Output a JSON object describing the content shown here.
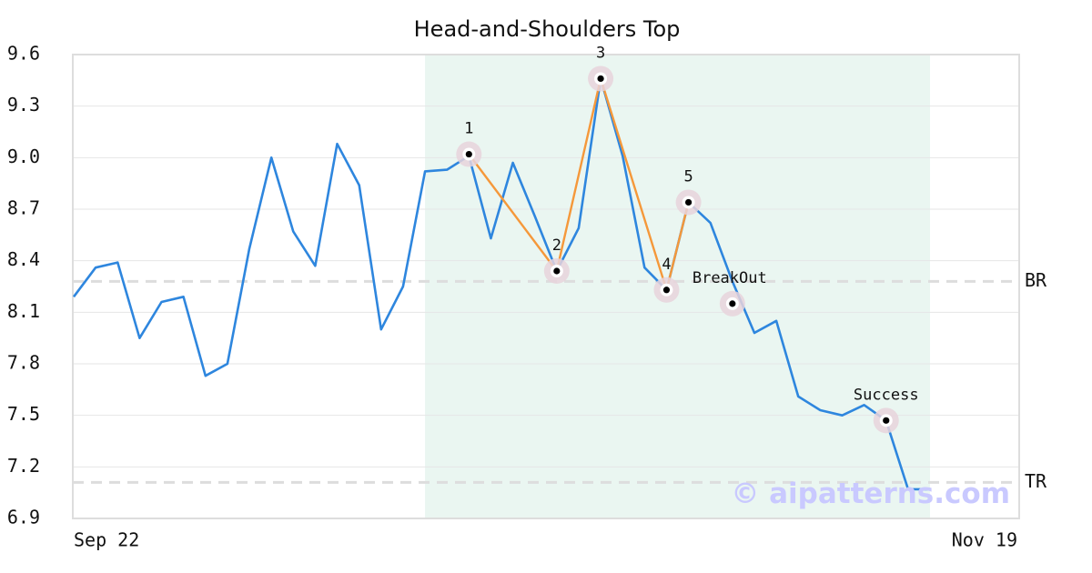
{
  "chart_data": {
    "type": "line",
    "title": "Head-and-Shoulders Top",
    "xlabel": "",
    "ylabel": "",
    "x_tick_labels": [
      "Sep 22",
      "Nov 19"
    ],
    "ylim": [
      6.9,
      9.6
    ],
    "yticks": [
      "6.9",
      "7.2",
      "7.5",
      "7.8",
      "8.1",
      "8.4",
      "8.7",
      "9.0",
      "9.3",
      "9.6"
    ],
    "grid": "horizontal",
    "colors": {
      "price": "#2e86de",
      "pattern": "#f5983a",
      "highlight": "#eaf6f1",
      "marker_halo": "#e8d3dc",
      "reference": "#dddddd"
    },
    "series": [
      {
        "values": [
          8.19,
          8.36,
          8.39,
          7.95,
          8.16,
          8.19,
          7.73,
          7.8,
          8.47,
          9.0,
          8.57,
          8.37,
          9.08,
          8.84,
          8.0,
          8.25,
          8.92,
          8.93,
          9.01,
          8.53,
          8.97,
          8.66,
          8.34,
          8.59,
          9.46,
          9.01,
          8.36,
          8.23,
          8.74,
          8.62,
          8.28,
          7.98,
          8.05,
          7.61,
          7.53,
          7.5,
          7.56,
          7.47,
          7.07,
          7.07
        ]
      }
    ],
    "highlight_range": [
      16,
      39
    ],
    "pattern_points": [
      {
        "label": "1",
        "index": 18,
        "value": 9.02
      },
      {
        "label": "2",
        "index": 22,
        "value": 8.34
      },
      {
        "label": "3",
        "index": 24,
        "value": 9.46
      },
      {
        "label": "4",
        "index": 27,
        "value": 8.23
      },
      {
        "label": "5",
        "index": 28,
        "value": 8.74
      }
    ],
    "event_points": [
      {
        "label": "BreakOut",
        "index": 30,
        "value": 8.15
      },
      {
        "label": "Success",
        "index": 37,
        "value": 7.47
      }
    ],
    "reference_lines": [
      {
        "label": "BR",
        "value": 8.28
      },
      {
        "label": "TR",
        "value": 7.11
      }
    ],
    "watermark": "© aipatterns.com"
  }
}
